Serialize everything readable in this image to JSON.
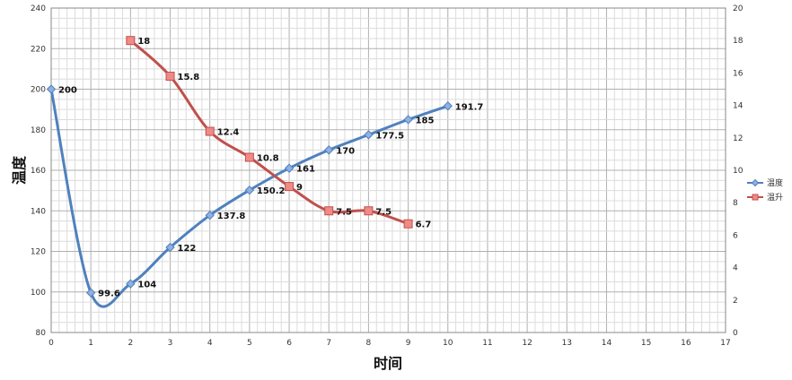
{
  "chart_data": {
    "type": "line",
    "xlabel": "时间",
    "ylabel": "温度",
    "xlim": [
      0,
      17
    ],
    "ylim": [
      80,
      240
    ],
    "y2lim": [
      0,
      20
    ],
    "x_ticks": [
      0,
      1,
      2,
      3,
      4,
      5,
      6,
      7,
      8,
      9,
      10,
      11,
      12,
      13,
      14,
      15,
      16,
      17
    ],
    "y_ticks": [
      80,
      100,
      120,
      140,
      160,
      180,
      200,
      220,
      240
    ],
    "y2_ticks": [
      0,
      2,
      4,
      6,
      8,
      10,
      12,
      14,
      16,
      18,
      20
    ],
    "grid": true,
    "legend_position": "right",
    "series": [
      {
        "name": "温度",
        "axis": "left",
        "color": "#4f81bd",
        "marker": "diamond",
        "x": [
          0,
          1,
          2,
          3,
          4,
          5,
          6,
          7,
          8,
          9,
          10
        ],
        "values": [
          200,
          99.6,
          104,
          122,
          137.8,
          150.2,
          161,
          170,
          177.5,
          185,
          191.7
        ],
        "labels": [
          "200",
          "99.6",
          "104",
          "122",
          "137.8",
          "150.2",
          "161",
          "170",
          "177.5",
          "185",
          "191.7"
        ]
      },
      {
        "name": "温升",
        "axis": "right",
        "color": "#c0504d",
        "marker": "square",
        "x": [
          2,
          3,
          4,
          5,
          6,
          7,
          8,
          9
        ],
        "values": [
          18,
          15.8,
          12.4,
          10.8,
          9,
          7.5,
          7.5,
          6.7
        ],
        "labels": [
          "18",
          "15.8",
          "12.4",
          "10.8",
          "9",
          "7.5",
          "7.5",
          "6.7"
        ]
      }
    ]
  }
}
